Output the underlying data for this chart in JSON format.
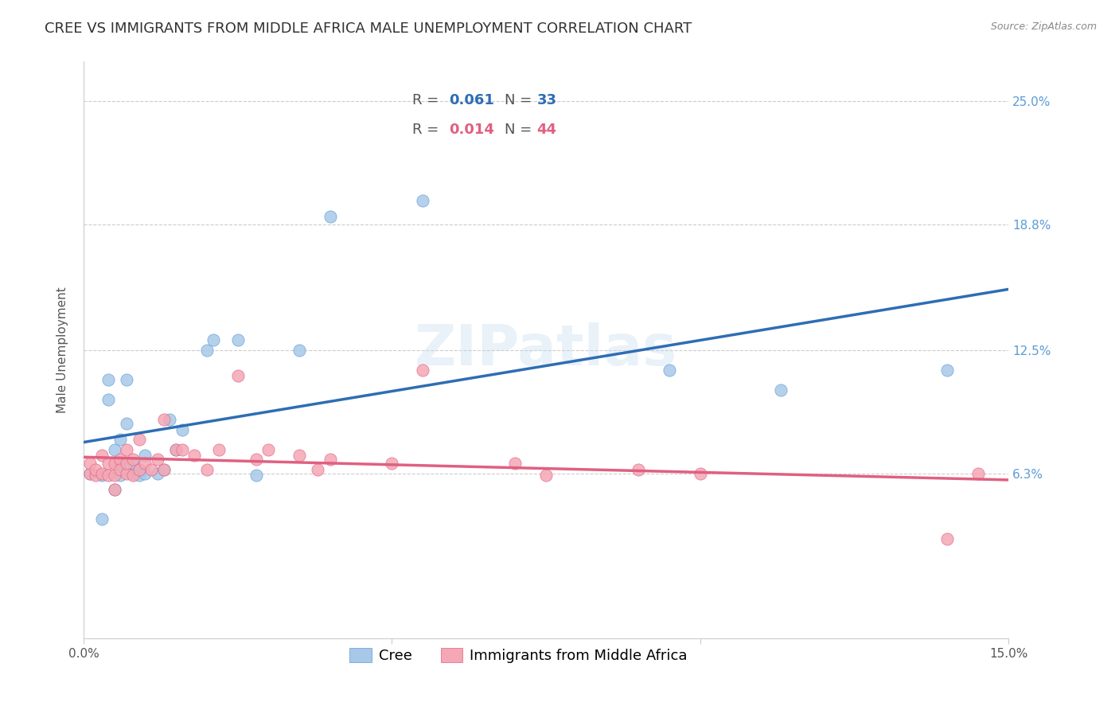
{
  "title": "CREE VS IMMIGRANTS FROM MIDDLE AFRICA MALE UNEMPLOYMENT CORRELATION CHART",
  "source": "Source: ZipAtlas.com",
  "xlabel": "",
  "ylabel": "Male Unemployment",
  "ylabel_color": "#555555",
  "x_label_bottom_left": "0.0%",
  "x_label_bottom_right": "15.0%",
  "y_tick_labels": [
    "25.0%",
    "18.8%",
    "12.5%",
    "6.3%"
  ],
  "y_tick_values": [
    0.25,
    0.188,
    0.125,
    0.063
  ],
  "y_axis_color": "#5b9bd5",
  "x_min": 0.0,
  "x_max": 0.15,
  "y_min": -0.02,
  "y_max": 0.27,
  "watermark": "ZIPatlas",
  "series": [
    {
      "name": "Cree",
      "color": "#a8c8e8",
      "edge_color": "#5b9bd5",
      "R": 0.061,
      "N": 33,
      "trend_color": "#2e6db4",
      "x": [
        0.001,
        0.003,
        0.003,
        0.004,
        0.004,
        0.005,
        0.005,
        0.006,
        0.006,
        0.006,
        0.007,
        0.007,
        0.008,
        0.008,
        0.009,
        0.009,
        0.01,
        0.01,
        0.012,
        0.013,
        0.014,
        0.015,
        0.016,
        0.02,
        0.021,
        0.025,
        0.028,
        0.035,
        0.04,
        0.055,
        0.095,
        0.113,
        0.14
      ],
      "y": [
        0.063,
        0.04,
        0.062,
        0.1,
        0.11,
        0.055,
        0.075,
        0.062,
        0.068,
        0.08,
        0.11,
        0.088,
        0.063,
        0.068,
        0.062,
        0.065,
        0.063,
        0.072,
        0.063,
        0.065,
        0.09,
        0.075,
        0.085,
        0.125,
        0.13,
        0.13,
        0.062,
        0.125,
        0.192,
        0.2,
        0.115,
        0.105,
        0.115
      ]
    },
    {
      "name": "Immigrants from Middle Africa",
      "color": "#f4a7b4",
      "edge_color": "#e06080",
      "R": 0.014,
      "N": 44,
      "trend_color": "#e06080",
      "x": [
        0.001,
        0.001,
        0.002,
        0.002,
        0.003,
        0.003,
        0.004,
        0.004,
        0.005,
        0.005,
        0.005,
        0.006,
        0.006,
        0.007,
        0.007,
        0.007,
        0.008,
        0.008,
        0.009,
        0.009,
        0.01,
        0.011,
        0.012,
        0.013,
        0.013,
        0.015,
        0.016,
        0.018,
        0.02,
        0.022,
        0.025,
        0.028,
        0.03,
        0.035,
        0.038,
        0.04,
        0.05,
        0.055,
        0.07,
        0.075,
        0.09,
        0.1,
        0.14,
        0.145
      ],
      "y": [
        0.063,
        0.068,
        0.062,
        0.065,
        0.063,
        0.072,
        0.062,
        0.068,
        0.062,
        0.055,
        0.068,
        0.07,
        0.065,
        0.063,
        0.068,
        0.075,
        0.062,
        0.07,
        0.065,
        0.08,
        0.068,
        0.065,
        0.07,
        0.09,
        0.065,
        0.075,
        0.075,
        0.072,
        0.065,
        0.075,
        0.112,
        0.07,
        0.075,
        0.072,
        0.065,
        0.07,
        0.068,
        0.115,
        0.068,
        0.062,
        0.065,
        0.063,
        0.03,
        0.063
      ]
    }
  ],
  "legend_R_color_blue": "#2e6db4",
  "legend_R_color_pink": "#e06080",
  "legend_N_color_blue": "#2e75b6",
  "legend_N_color_pink": "#e06080",
  "grid_color": "#cccccc",
  "background_color": "#ffffff",
  "title_fontsize": 13,
  "axis_fontsize": 11,
  "tick_fontsize": 11,
  "legend_fontsize": 13
}
